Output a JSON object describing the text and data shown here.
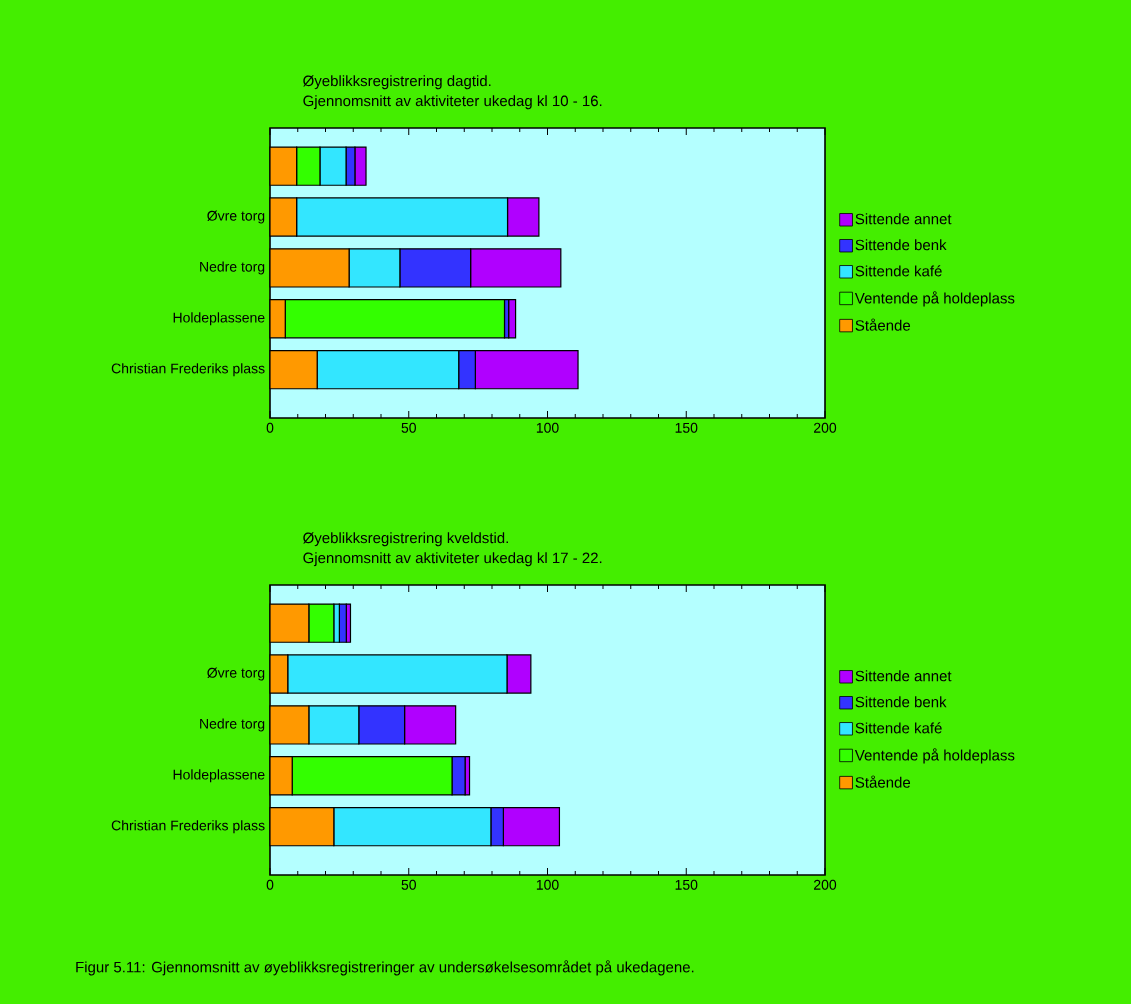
{
  "chart_data": [
    {
      "type": "bar",
      "orientation": "horizontal",
      "stacked": true,
      "title": "Øyeblikksregistrering dagtid.",
      "subtitle": "Gjennomsnitt av aktiviteter ukedag kl 10 - 16.",
      "categories": [
        null,
        "Øvre torg",
        "Nedre torg",
        "Holdeplassene",
        "Christian Frederiks plass"
      ],
      "series": [
        {
          "name": "Stående",
          "color": "#ff9900",
          "values": [
            9.6,
            9.6,
            28.5,
            5.5,
            17
          ]
        },
        {
          "name": "Ventende på holdeplass",
          "color": "#33ff00",
          "values": [
            8.4,
            0,
            0,
            79,
            0
          ]
        },
        {
          "name": "Sittende kafé",
          "color": "#33e6ff",
          "values": [
            9.4,
            76,
            18.3,
            0,
            51
          ]
        },
        {
          "name": "Sittende benk",
          "color": "#3333ff",
          "values": [
            3.2,
            0,
            25.5,
            1.5,
            6
          ]
        },
        {
          "name": "Sittende annet",
          "color": "#b000ff",
          "values": [
            4,
            11.3,
            32.5,
            2.5,
            37
          ]
        }
      ],
      "xlim": [
        0,
        200
      ],
      "xticks": [
        0,
        50,
        100,
        150,
        200
      ],
      "legend": "right",
      "grid": false
    },
    {
      "type": "bar",
      "orientation": "horizontal",
      "stacked": true,
      "title": "Øyeblikksregistrering kveldstid.",
      "subtitle": "Gjennomsnitt av aktiviteter ukedag kl 17 - 22.",
      "categories": [
        null,
        "Øvre torg",
        "Nedre torg",
        "Holdeplassene",
        "Christian Frederiks plass"
      ],
      "series": [
        {
          "name": "Stående",
          "color": "#ff9900",
          "values": [
            14,
            6.4,
            14,
            8,
            23
          ]
        },
        {
          "name": "Ventende på holdeplass",
          "color": "#33ff00",
          "values": [
            9,
            0,
            0,
            57.6,
            0
          ]
        },
        {
          "name": "Sittende kafé",
          "color": "#33e6ff",
          "values": [
            2,
            79,
            18,
            0,
            56.6
          ]
        },
        {
          "name": "Sittende benk",
          "color": "#3333ff",
          "values": [
            2.5,
            0,
            16.5,
            4.7,
            4.5
          ]
        },
        {
          "name": "Sittende annet",
          "color": "#b000ff",
          "values": [
            1.5,
            8.6,
            18.4,
            1.6,
            20.2
          ]
        }
      ],
      "xlim": [
        0,
        200
      ],
      "xticks": [
        0,
        50,
        100,
        150,
        200
      ],
      "legend": "right",
      "grid": false,
      "annotations": [
        "Figur 5.11: Gjennomsnitt av øyeblikksregistreringer av undersøkelsesområdet på ukedagene."
      ]
    }
  ]
}
